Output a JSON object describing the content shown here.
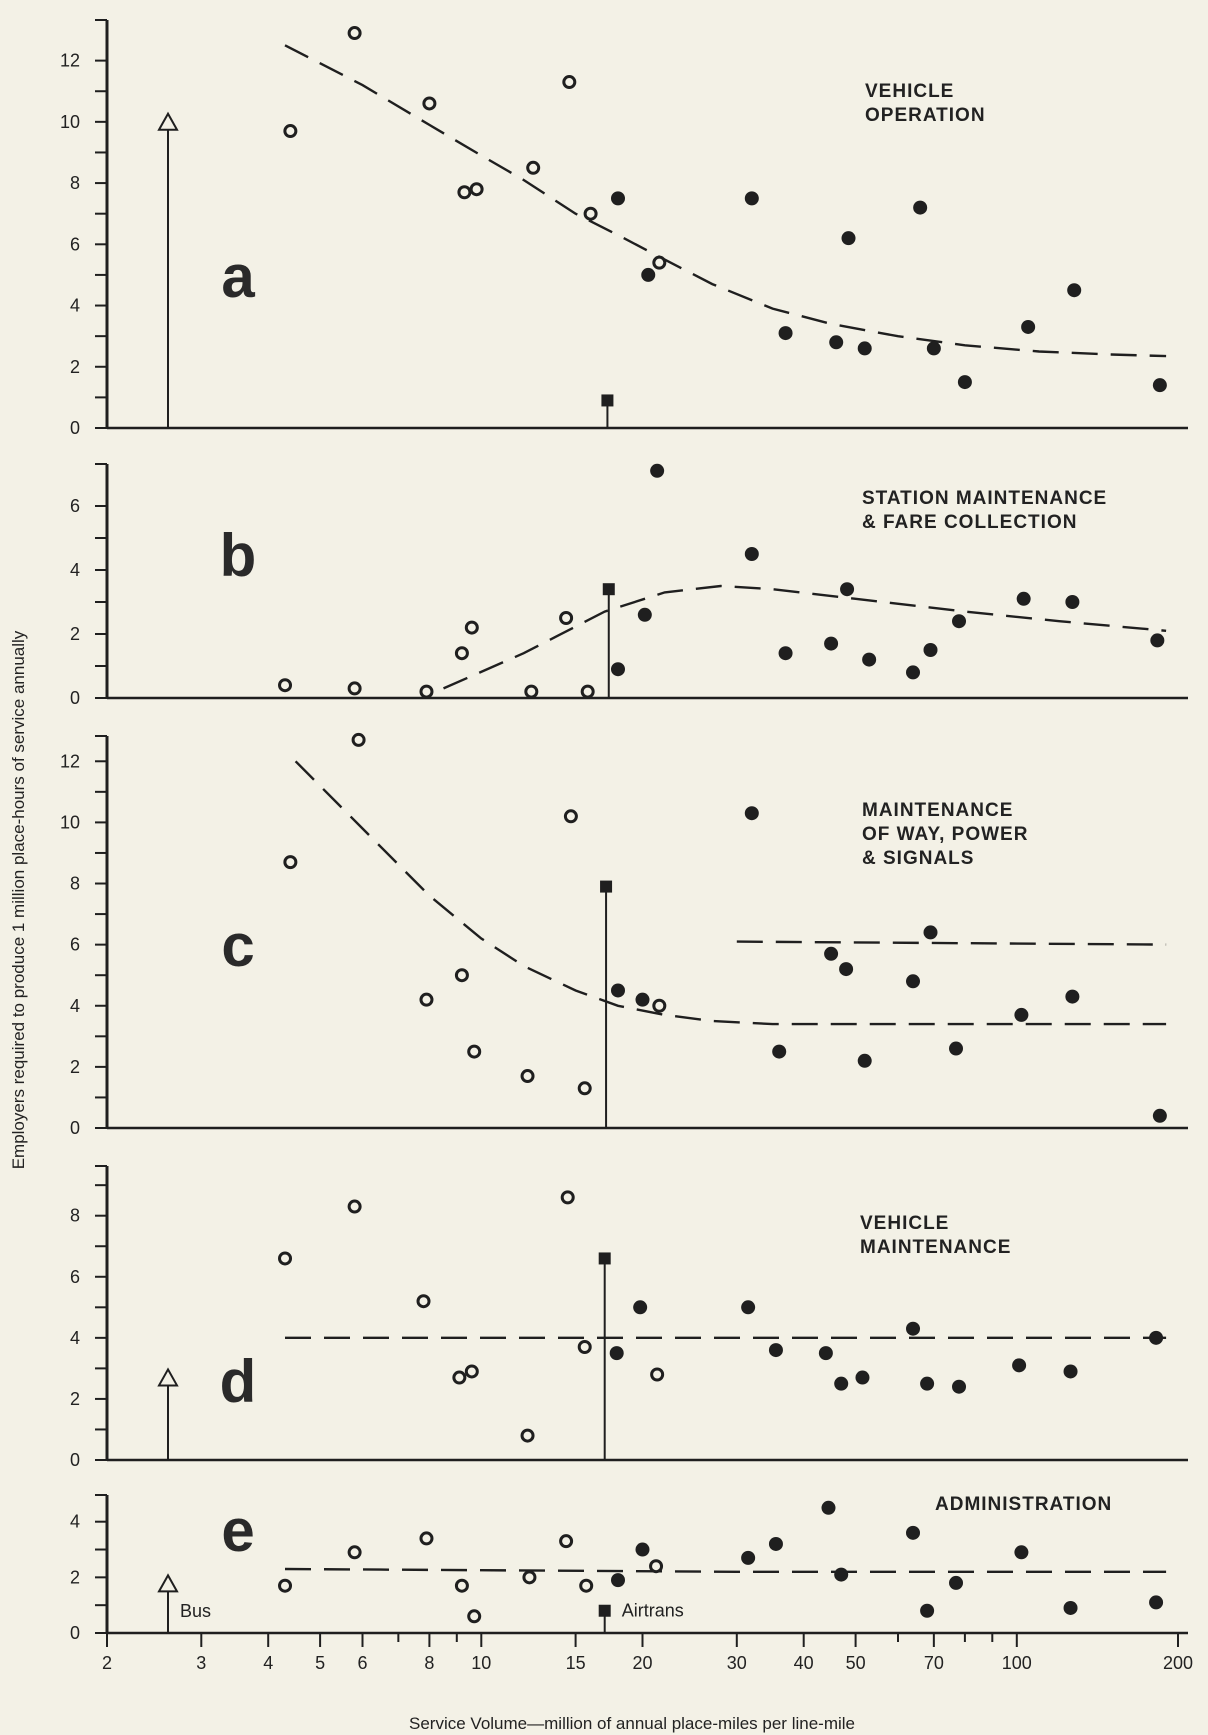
{
  "chart_data": {
    "type": "scatter",
    "x_scale": "log",
    "xlim": [
      2,
      200
    ],
    "xlabel": "Service Volume—million of annual place-miles per line-mile",
    "ylabel": "Employers required to produce 1 million place-hours of service annually",
    "xticks": [
      2,
      3,
      4,
      5,
      6,
      8,
      10,
      15,
      20,
      30,
      40,
      50,
      70,
      100,
      200
    ],
    "minor_xticks": [
      7,
      9,
      60,
      80,
      90
    ],
    "markers": {
      "open_circle": "open circle",
      "filled_circle": "filled circle",
      "square": "Airtrans",
      "arrow": "Bus"
    },
    "panels": [
      {
        "letter": "a",
        "title": [
          "VEHICLE",
          "OPERATION"
        ],
        "ylim": [
          0,
          13
        ],
        "yticks": [
          0,
          2,
          4,
          6,
          8,
          10,
          12
        ],
        "open": [
          [
            4.4,
            9.7
          ],
          [
            5.8,
            12.9
          ],
          [
            8.0,
            10.6
          ],
          [
            9.3,
            7.7
          ],
          [
            9.8,
            7.8
          ],
          [
            12.5,
            8.5
          ],
          [
            14.6,
            11.3
          ],
          [
            16.0,
            7.0
          ],
          [
            21.5,
            5.4
          ]
        ],
        "filled": [
          [
            18.0,
            7.5
          ],
          [
            20.5,
            5.0
          ],
          [
            32.0,
            7.5
          ],
          [
            37.0,
            3.1
          ],
          [
            46.0,
            2.8
          ],
          [
            48.5,
            6.2
          ],
          [
            52.0,
            2.6
          ],
          [
            66.0,
            7.2
          ],
          [
            70.0,
            2.6
          ],
          [
            80.0,
            1.5
          ],
          [
            105.0,
            3.3
          ],
          [
            128.0,
            4.5
          ],
          [
            185.0,
            1.4
          ]
        ],
        "square": [
          17.2,
          0.9
        ],
        "bus_arrow": 10.2,
        "trend": [
          [
            4.3,
            12.5
          ],
          [
            6.0,
            11.2
          ],
          [
            8.0,
            9.9
          ],
          [
            10.0,
            8.9
          ],
          [
            12.0,
            8.1
          ],
          [
            15.0,
            7.0
          ],
          [
            18.0,
            6.3
          ],
          [
            22.0,
            5.5
          ],
          [
            27.0,
            4.7
          ],
          [
            35.0,
            3.9
          ],
          [
            45.0,
            3.4
          ],
          [
            60.0,
            3.0
          ],
          [
            80.0,
            2.7
          ],
          [
            110.0,
            2.5
          ],
          [
            150.0,
            2.4
          ],
          [
            190.0,
            2.35
          ]
        ],
        "trend2": null
      },
      {
        "letter": "b",
        "title": [
          "STATION MAINTENANCE",
          "& FARE COLLECTION"
        ],
        "ylim": [
          0,
          7
        ],
        "yticks": [
          0,
          2,
          4,
          6
        ],
        "open": [
          [
            4.3,
            0.4
          ],
          [
            5.8,
            0.3
          ],
          [
            7.9,
            0.2
          ],
          [
            9.2,
            1.4
          ],
          [
            9.6,
            2.2
          ],
          [
            12.4,
            0.2
          ],
          [
            14.4,
            2.5
          ],
          [
            15.8,
            0.2
          ]
        ],
        "filled": [
          [
            18.0,
            0.9
          ],
          [
            20.2,
            2.6
          ],
          [
            21.3,
            7.1
          ],
          [
            32.0,
            4.5
          ],
          [
            37.0,
            1.4
          ],
          [
            45.0,
            1.7
          ],
          [
            48.2,
            3.4
          ],
          [
            53.0,
            1.2
          ],
          [
            64.0,
            0.8
          ],
          [
            69.0,
            1.5
          ],
          [
            78.0,
            2.4
          ],
          [
            103.0,
            3.1
          ],
          [
            127.0,
            3.0
          ],
          [
            183.0,
            1.8
          ]
        ],
        "square": [
          17.3,
          3.4
        ],
        "bus_arrow": null,
        "trend": [
          [
            8.5,
            0.3
          ],
          [
            12.0,
            1.4
          ],
          [
            17.0,
            2.7
          ],
          [
            22.0,
            3.3
          ],
          [
            28.0,
            3.5
          ],
          [
            35.0,
            3.4
          ],
          [
            50.0,
            3.1
          ],
          [
            80.0,
            2.7
          ],
          [
            120.0,
            2.4
          ],
          [
            190.0,
            2.1
          ]
        ],
        "trend2": null
      },
      {
        "letter": "c",
        "title": [
          "MAINTENANCE",
          "OF WAY, POWER",
          "& SIGNALS"
        ],
        "ylim": [
          0,
          12.5
        ],
        "yticks": [
          0,
          2,
          4,
          6,
          8,
          10,
          12
        ],
        "open": [
          [
            4.4,
            8.7
          ],
          [
            5.9,
            12.7
          ],
          [
            7.9,
            4.2
          ],
          [
            9.2,
            5.0
          ],
          [
            9.7,
            2.5
          ],
          [
            12.2,
            1.7
          ],
          [
            14.7,
            10.2
          ],
          [
            15.6,
            1.3
          ],
          [
            21.5,
            4.0
          ]
        ],
        "filled": [
          [
            18.0,
            4.5
          ],
          [
            20.0,
            4.2
          ],
          [
            32.0,
            10.3
          ],
          [
            36.0,
            2.5
          ],
          [
            45.0,
            5.7
          ],
          [
            48.0,
            5.2
          ],
          [
            52.0,
            2.2
          ],
          [
            64.0,
            4.8
          ],
          [
            69.0,
            6.4
          ],
          [
            77.0,
            2.6
          ],
          [
            102.0,
            3.7
          ],
          [
            127.0,
            4.3
          ],
          [
            185.0,
            0.4
          ]
        ],
        "square": [
          17.1,
          7.9
        ],
        "bus_arrow": null,
        "trend": [
          [
            4.5,
            12.0
          ],
          [
            6.0,
            9.8
          ],
          [
            8.0,
            7.6
          ],
          [
            10.0,
            6.2
          ],
          [
            12.0,
            5.3
          ],
          [
            15.0,
            4.5
          ],
          [
            18.0,
            4.0
          ],
          [
            22.0,
            3.7
          ],
          [
            27.0,
            3.5
          ],
          [
            35.0,
            3.4
          ],
          [
            60.0,
            3.4
          ],
          [
            100.0,
            3.4
          ],
          [
            190.0,
            3.4
          ]
        ],
        "trend2": [
          [
            30.0,
            6.1
          ],
          [
            190.0,
            6.0
          ]
        ]
      },
      {
        "letter": "d",
        "title": [
          "VEHICLE",
          "MAINTENANCE"
        ],
        "ylim": [
          0,
          9.3
        ],
        "yticks": [
          0,
          2,
          4,
          6,
          8
        ],
        "open": [
          [
            4.3,
            6.6
          ],
          [
            5.8,
            8.3
          ],
          [
            7.8,
            5.2
          ],
          [
            9.1,
            2.7
          ],
          [
            9.6,
            2.9
          ],
          [
            12.2,
            0.8
          ],
          [
            14.5,
            8.6
          ],
          [
            15.6,
            3.7
          ],
          [
            21.3,
            2.8
          ]
        ],
        "filled": [
          [
            17.9,
            3.5
          ],
          [
            19.8,
            5.0
          ],
          [
            31.5,
            5.0
          ],
          [
            35.5,
            3.6
          ],
          [
            44.0,
            3.5
          ],
          [
            47.0,
            2.5
          ],
          [
            51.5,
            2.7
          ],
          [
            64.0,
            4.3
          ],
          [
            68.0,
            2.5
          ],
          [
            78.0,
            2.4
          ],
          [
            101.0,
            3.1
          ],
          [
            126.0,
            2.9
          ],
          [
            182.0,
            4.0
          ]
        ],
        "square": [
          17.0,
          6.6
        ],
        "bus_arrow": 2.9,
        "trend": [
          [
            4.3,
            4.0
          ],
          [
            190.0,
            4.0
          ]
        ],
        "trend2": null
      },
      {
        "letter": "e",
        "title": [
          "ADMINISTRATION"
        ],
        "ylim": [
          0,
          4.6
        ],
        "yticks": [
          0,
          2,
          4
        ],
        "open": [
          [
            4.3,
            1.7
          ],
          [
            5.8,
            2.9
          ],
          [
            7.9,
            3.4
          ],
          [
            9.2,
            1.7
          ],
          [
            9.7,
            0.6
          ],
          [
            12.3,
            2.0
          ],
          [
            14.4,
            3.3
          ],
          [
            15.7,
            1.7
          ],
          [
            21.2,
            2.4
          ]
        ],
        "filled": [
          [
            18.0,
            1.9
          ],
          [
            20.0,
            3.0
          ],
          [
            31.5,
            2.7
          ],
          [
            35.5,
            3.2
          ],
          [
            44.5,
            4.5
          ],
          [
            47.0,
            2.1
          ],
          [
            64.0,
            3.6
          ],
          [
            68.0,
            0.8
          ],
          [
            77.0,
            1.8
          ],
          [
            102.0,
            2.9
          ],
          [
            126.0,
            0.9
          ],
          [
            182.0,
            1.1
          ]
        ],
        "square": [
          17.0,
          0.8
        ],
        "bus_arrow": 2.0,
        "trend": [
          [
            4.3,
            2.3
          ],
          [
            30.0,
            2.2
          ],
          [
            190.0,
            2.2
          ]
        ],
        "trend2": null
      }
    ]
  },
  "annotations": {
    "bus_label": "Bus",
    "airtrans_label": "Airtrans"
  },
  "colors": {
    "ink": "#1f1f1f",
    "paper": "#f3f1e6"
  }
}
